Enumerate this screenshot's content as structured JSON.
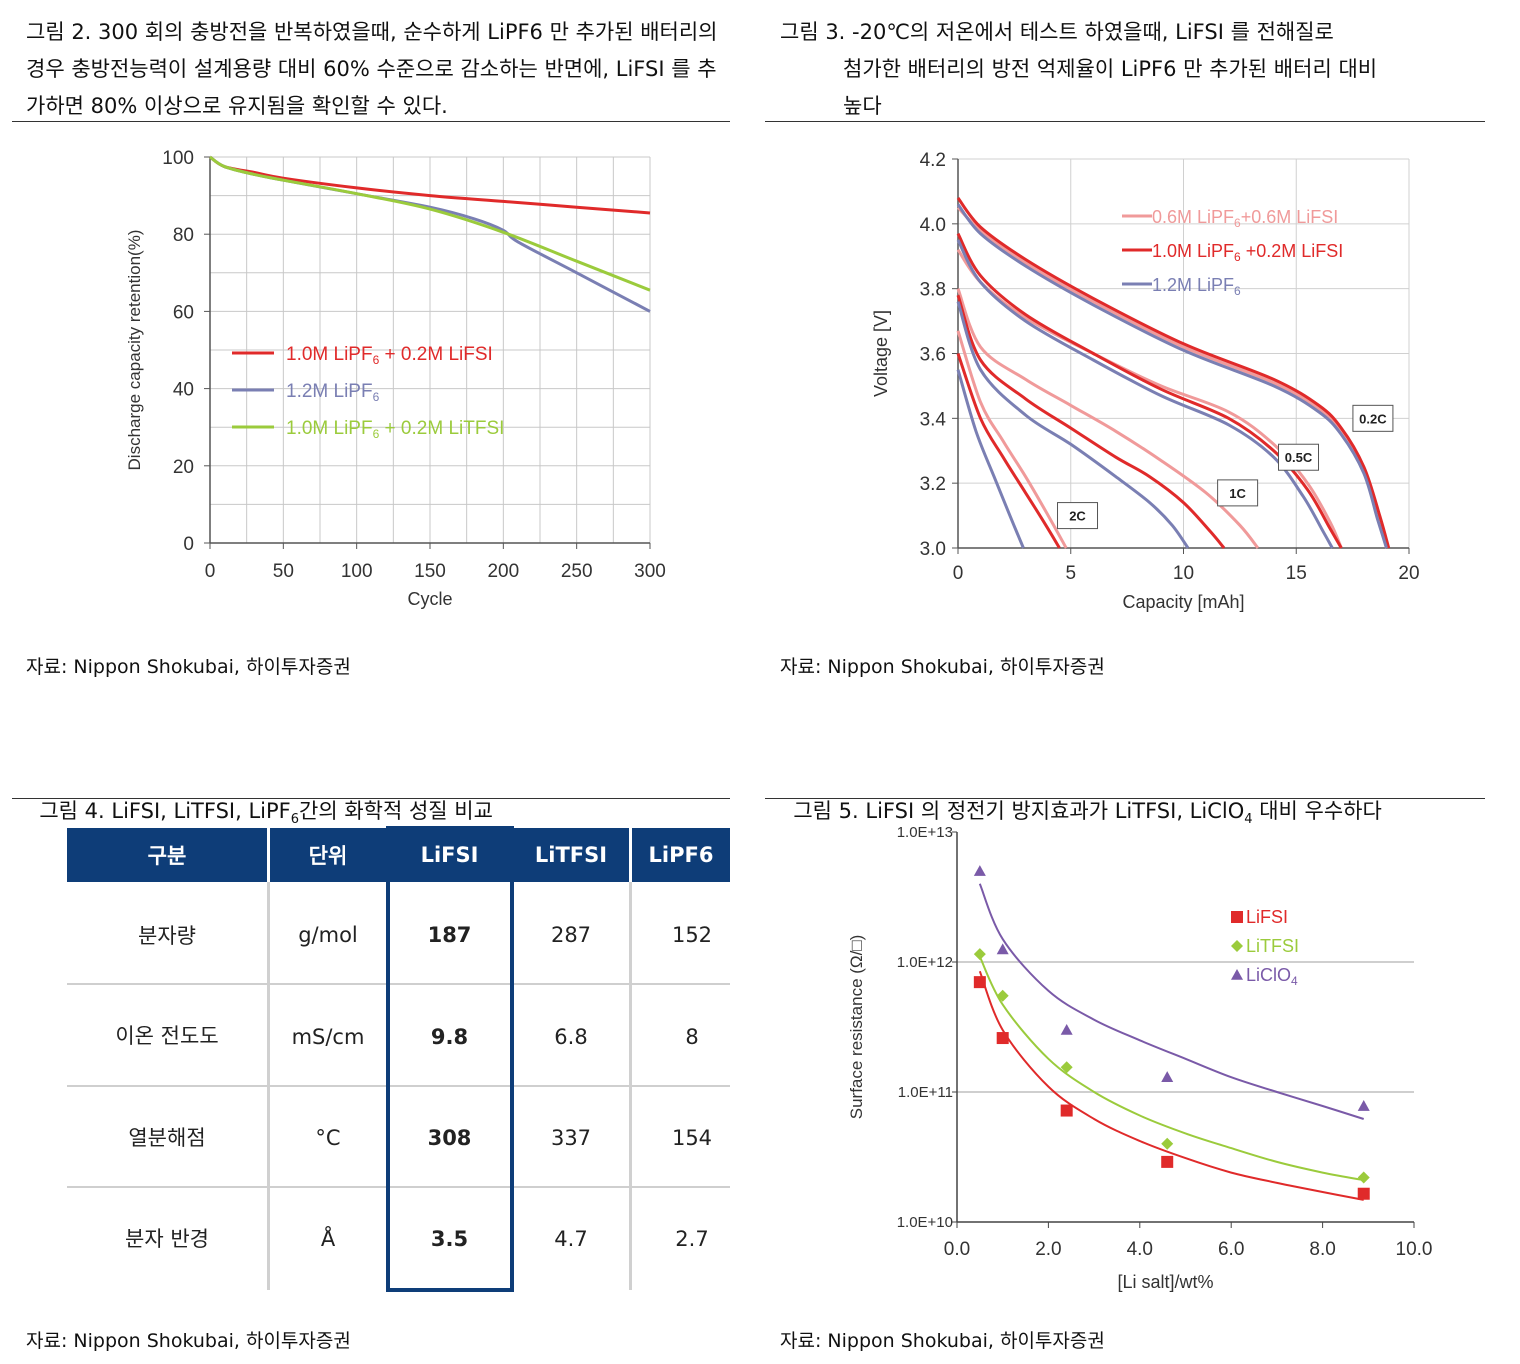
{
  "fig2": {
    "title": "그림 2. 300 회의 충방전을 반복하였을때, 순수하게 LiPF6 만 추가된 배터리의 경우 충방전능력이 설계용량 대비 60% 수준으로 감소하는 반면에, LiFSI 를 추가하면 80% 이상으로 유지됨을 확인할 수 있다.",
    "source": "자료: Nippon Shokubai, 하이투자증권"
  },
  "fig3": {
    "title_line1": "그림 3. -20℃의 저온에서 테스트 하였을때, LiFSI 를 전해질로",
    "title_line2": "첨가한 배터리의 방전 억제율이 LiPF6 만 추가된 배터리 대비",
    "title_line3": "높다",
    "source": "자료: Nippon Shokubai, 하이투자증권"
  },
  "fig4": {
    "title": "그림 4. LiFSI, LiTFSI, LiPF",
    "title_sub": "6",
    "title_tail": "간의 화학적 성질 비교",
    "headers": [
      "구분",
      "단위",
      "LiFSI",
      "LiTFSI",
      "LiPF6"
    ],
    "rows": [
      [
        "분자량",
        "g/mol",
        "187",
        "287",
        "152"
      ],
      [
        "이온 전도도",
        "mS/cm",
        "9.8",
        "6.8",
        "8"
      ],
      [
        "열분해점",
        "°C",
        "308",
        "337",
        "154"
      ],
      [
        "분자 반경",
        "Å",
        "3.5",
        "4.7",
        "2.7"
      ]
    ],
    "source": "자료: Nippon Shokubai, 하이투자증권"
  },
  "fig5": {
    "title": "그림 5. LiFSI 의 정전기 방지효과가 LiTFSI, LiClO",
    "title_sub": "4",
    "title_tail": " 대비 우수하다",
    "source": "자료: Nippon Shokubai, 하이투자증권"
  },
  "colors": {
    "red": "#e02a2a",
    "blue": "#7a7fb3",
    "green": "#9bcb3c",
    "navy": "#0e3d78",
    "pink": "#f09a9a",
    "purple": "#7a5aa8"
  },
  "chart_data": [
    {
      "id": "fig2-chart",
      "type": "line",
      "xlabel": "Cycle",
      "ylabel": "Discharge capacity retention(%)",
      "xlim": [
        0,
        300
      ],
      "ylim": [
        0,
        100
      ],
      "xticks": [
        "0",
        "50",
        "100",
        "150",
        "200",
        "250",
        "300"
      ],
      "yticks": [
        "0",
        "20",
        "40",
        "60",
        "80",
        "100"
      ],
      "series": [
        {
          "name": "1.0M LiPF6 + 0.2M LiFSI",
          "legend": "1.0M LiPF",
          "sub": "6",
          "tail": " + 0.2M LiFSI",
          "color": "#e02a2a",
          "x": [
            0,
            10,
            30,
            50,
            100,
            150,
            200,
            250,
            300
          ],
          "y": [
            100,
            97.5,
            96,
            94.5,
            92,
            90,
            88.5,
            87,
            85.5
          ]
        },
        {
          "name": "1.2M LiPF6",
          "legend": "1.2M LiPF",
          "sub": "6",
          "tail": "",
          "color": "#7a7fb3",
          "x": [
            0,
            10,
            30,
            50,
            100,
            150,
            180,
            200,
            210,
            250,
            300
          ],
          "y": [
            100,
            97.5,
            95.5,
            94,
            90.5,
            87,
            84,
            81,
            78,
            70,
            60
          ]
        },
        {
          "name": "1.0M LiPF6 + 0.2M LiTFSI",
          "legend": "1.0M LiPF",
          "sub": "6",
          "tail": " + 0.2M LiTFSI",
          "color": "#9bcb3c",
          "x": [
            0,
            10,
            30,
            50,
            100,
            150,
            200,
            250,
            300
          ],
          "y": [
            100,
            97.5,
            95.5,
            94,
            90.5,
            86.5,
            80.5,
            73,
            65.5
          ]
        }
      ]
    },
    {
      "id": "fig3-chart",
      "type": "line",
      "xlabel": "Capacity [mAh]",
      "ylabel": "Voltage [V]",
      "xlim": [
        0,
        20
      ],
      "ylim": [
        3.0,
        4.2
      ],
      "xticks": [
        "0",
        "5",
        "10",
        "15",
        "20"
      ],
      "yticks": [
        "3.0",
        "3.2",
        "3.4",
        "3.6",
        "3.8",
        "4.0",
        "4.2"
      ],
      "legend": [
        {
          "label": "0.6M LiPF",
          "sub": "6",
          "tail": "+0.6M LiFSI",
          "color": "#f09a9a"
        },
        {
          "label": "1.0M LiPF",
          "sub": "6",
          "tail": " +0.2M LiFSI",
          "color": "#e02a2a"
        },
        {
          "label": "1.2M LiPF",
          "sub": "6",
          "tail": "",
          "color": "#7a7fb3"
        }
      ],
      "rate_labels": [
        {
          "text": "0.2C",
          "x": 18.4,
          "y": 3.4
        },
        {
          "text": "0.5C",
          "x": 15.1,
          "y": 3.28
        },
        {
          "text": "1C",
          "x": 12.4,
          "y": 3.17
        },
        {
          "text": "2C",
          "x": 5.3,
          "y": 3.1
        }
      ],
      "series": [
        {
          "rate": "0.2C",
          "name": "0.6M LiPF6+0.6M LiFSI",
          "color": "#f09a9a",
          "x": [
            0,
            1,
            3,
            6,
            10,
            14,
            16,
            17,
            18,
            18.6,
            19.0
          ],
          "y": [
            4.05,
            3.98,
            3.88,
            3.76,
            3.62,
            3.51,
            3.43,
            3.36,
            3.24,
            3.1,
            3.0
          ]
        },
        {
          "rate": "0.2C",
          "name": "1.0M LiPF6 +0.2M LiFSI",
          "color": "#e02a2a",
          "x": [
            0,
            1,
            3,
            6,
            10,
            14,
            16,
            17,
            18,
            18.7,
            19.1
          ],
          "y": [
            4.08,
            3.99,
            3.89,
            3.77,
            3.63,
            3.52,
            3.44,
            3.37,
            3.25,
            3.1,
            3.0
          ]
        },
        {
          "rate": "0.2C",
          "name": "1.2M LiPF6",
          "color": "#7a7fb3",
          "x": [
            0,
            1,
            3,
            6,
            10,
            14,
            16,
            17,
            18,
            18.6,
            19.0
          ],
          "y": [
            4.06,
            3.97,
            3.87,
            3.75,
            3.61,
            3.5,
            3.42,
            3.35,
            3.23,
            3.09,
            3.0
          ]
        },
        {
          "rate": "0.5C",
          "name": "0.6M LiPF6+0.6M LiFSI",
          "color": "#f09a9a",
          "x": [
            0,
            1,
            3,
            6,
            9,
            12,
            14,
            15.5,
            16.5,
            17.0
          ],
          "y": [
            3.92,
            3.82,
            3.71,
            3.6,
            3.5,
            3.42,
            3.32,
            3.2,
            3.08,
            3.0
          ]
        },
        {
          "rate": "0.5C",
          "name": "1.0M LiPF6 +0.2M LiFSI",
          "color": "#e02a2a",
          "x": [
            0,
            1,
            3,
            6,
            9,
            12,
            14,
            15.5,
            16.5,
            17.0
          ],
          "y": [
            3.97,
            3.84,
            3.72,
            3.6,
            3.49,
            3.4,
            3.3,
            3.18,
            3.06,
            3.0
          ]
        },
        {
          "rate": "0.5C",
          "name": "1.2M LiPF6",
          "color": "#7a7fb3",
          "x": [
            0,
            1,
            3,
            6,
            9,
            12,
            14,
            15.3,
            16.2,
            16.6
          ],
          "y": [
            3.95,
            3.82,
            3.7,
            3.58,
            3.47,
            3.38,
            3.28,
            3.16,
            3.05,
            3.0
          ]
        },
        {
          "rate": "1C",
          "name": "0.6M LiPF6+0.6M LiFSI",
          "color": "#f09a9a",
          "x": [
            0,
            1,
            3,
            5,
            7,
            9,
            11,
            12.5,
            13.3
          ],
          "y": [
            3.8,
            3.62,
            3.52,
            3.44,
            3.36,
            3.27,
            3.17,
            3.07,
            3.0
          ]
        },
        {
          "rate": "1C",
          "name": "1.0M LiPF6 +0.2M LiFSI",
          "color": "#e02a2a",
          "x": [
            0,
            1,
            3,
            5,
            7,
            8.5,
            10,
            11.2,
            11.8
          ],
          "y": [
            3.78,
            3.58,
            3.46,
            3.37,
            3.28,
            3.22,
            3.14,
            3.05,
            3.0
          ]
        },
        {
          "rate": "1C",
          "name": "1.2M LiPF6",
          "color": "#7a7fb3",
          "x": [
            0,
            1,
            3,
            5,
            7,
            8.5,
            9.5,
            10.2
          ],
          "y": [
            3.76,
            3.55,
            3.41,
            3.32,
            3.22,
            3.14,
            3.07,
            3.0
          ]
        },
        {
          "rate": "2C",
          "name": "0.6M LiPF6+0.6M LiFSI",
          "color": "#f09a9a",
          "x": [
            0,
            1,
            2,
            3,
            4,
            4.8
          ],
          "y": [
            3.67,
            3.45,
            3.33,
            3.22,
            3.1,
            3.0
          ]
        },
        {
          "rate": "2C",
          "name": "1.0M LiPF6 +0.2M LiFSI",
          "color": "#e02a2a",
          "x": [
            0,
            1,
            2,
            3,
            3.9,
            4.5
          ],
          "y": [
            3.6,
            3.4,
            3.28,
            3.17,
            3.07,
            3.0
          ]
        },
        {
          "rate": "2C",
          "name": "1.2M LiPF6",
          "color": "#7a7fb3",
          "x": [
            0,
            0.8,
            1.6,
            2.3,
            2.9
          ],
          "y": [
            3.55,
            3.36,
            3.22,
            3.1,
            3.0
          ]
        }
      ]
    },
    {
      "id": "fig5-chart",
      "type": "scatter",
      "xlabel": "[Li salt]/wt%",
      "ylabel": "Surface resistance (Ω/□)",
      "xlim": [
        0,
        10
      ],
      "ylim_log10": [
        10,
        13
      ],
      "xticks": [
        "0.0",
        "2.0",
        "4.0",
        "6.0",
        "8.0",
        "10.0"
      ],
      "yticks": [
        "1.0E+10",
        "1.0E+11",
        "1.0E+12",
        "1.0E+13"
      ],
      "series": [
        {
          "name": "LiFSI",
          "marker": "square",
          "color": "#e02a2a",
          "x": [
            0.5,
            1.0,
            2.4,
            4.6,
            8.9
          ],
          "y": [
            700000000000.0,
            260000000000.0,
            72000000000.0,
            29000000000.0,
            16500000000.0
          ],
          "fit_x": [
            0.5,
            1,
            2,
            3,
            4,
            5,
            6,
            7,
            8,
            8.9
          ],
          "fit_y": [
            850000000000.0,
            300000000000.0,
            110000000000.0,
            62000000000.0,
            42000000000.0,
            31000000000.0,
            24000000000.0,
            20000000000.0,
            17000000000.0,
            14800000000.0
          ]
        },
        {
          "name": "LiTFSI",
          "marker": "diamond",
          "color": "#9bcb3c",
          "x": [
            0.5,
            1.0,
            2.4,
            4.6,
            8.9
          ],
          "y": [
            1150000000000.0,
            550000000000.0,
            155000000000.0,
            40000000000.0,
            22000000000.0
          ],
          "fit_x": [
            0.5,
            1,
            2,
            3,
            4,
            5,
            6,
            7,
            8,
            8.9
          ],
          "fit_y": [
            1100000000000.0,
            470000000000.0,
            180000000000.0,
            100000000000.0,
            66000000000.0,
            48000000000.0,
            37000000000.0,
            29000000000.0,
            24000000000.0,
            21000000000.0
          ]
        },
        {
          "name": "LiClO4",
          "marker": "triangle",
          "color": "#7a5aa8",
          "x": [
            0.5,
            1.0,
            2.4,
            4.6,
            8.9
          ],
          "y": [
            5000000000000.0,
            1250000000000.0,
            300000000000.0,
            130000000000.0,
            78000000000.0
          ],
          "fit_x": [
            0.5,
            1,
            2,
            3,
            4,
            5,
            6,
            7,
            8,
            8.9
          ],
          "fit_y": [
            4000000000000.0,
            1500000000000.0,
            600000000000.0,
            360000000000.0,
            250000000000.0,
            180000000000.0,
            130000000000.0,
            100000000000.0,
            78000000000.0,
            62000000000.0
          ]
        }
      ],
      "legend": [
        {
          "label": "LiFSI",
          "sub": "",
          "color": "#e02a2a",
          "marker": "square"
        },
        {
          "label": "LiTFSI",
          "sub": "",
          "color": "#9bcb3c",
          "marker": "diamond"
        },
        {
          "label": "LiClO",
          "sub": "4",
          "color": "#7a5aa8",
          "marker": "triangle"
        }
      ]
    }
  ]
}
